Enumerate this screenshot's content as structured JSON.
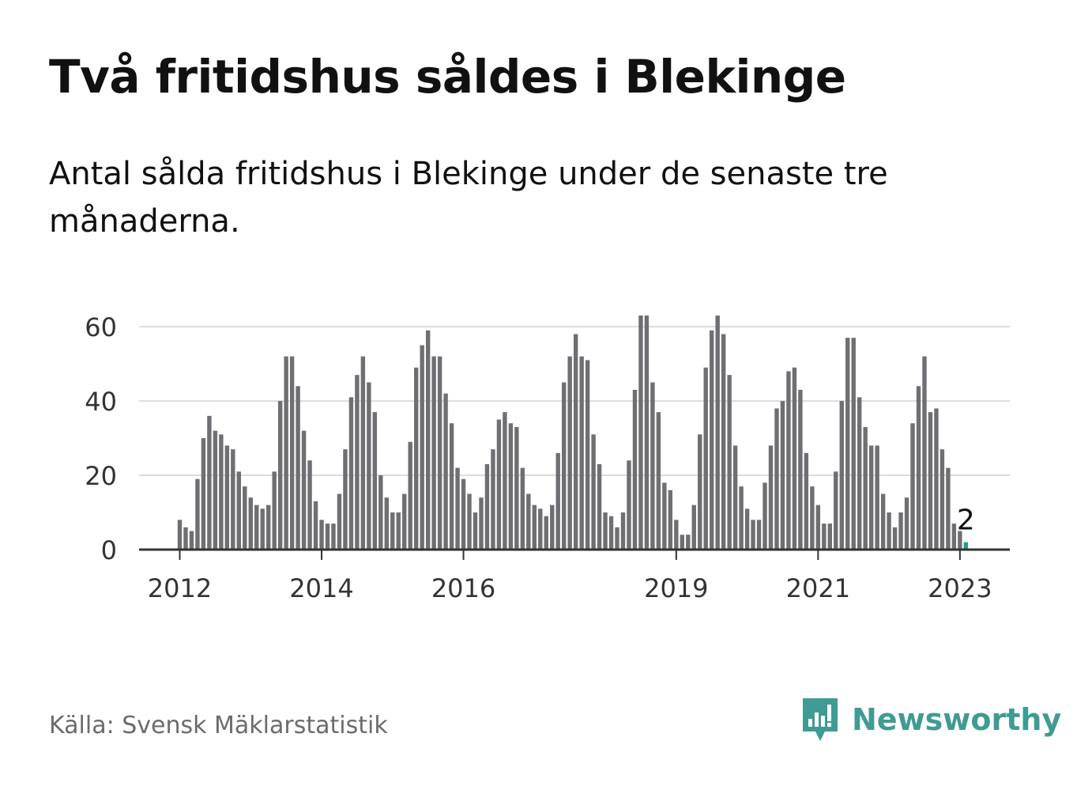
{
  "title": "Två fritidshus såldes i Blekinge",
  "subtitle": "Antal sålda fritidshus i Blekinge under de senaste tre månaderna.",
  "source": "Källa: Svensk Mäklarstatistik",
  "brand": {
    "name": "Newsworthy",
    "icon": "newsworthy-logo-icon",
    "color": "#3f9b93"
  },
  "chart_data": {
    "type": "bar",
    "x_start": "2012-01",
    "x_ticks": [
      "2012",
      "2014",
      "2016",
      "2019",
      "2021",
      "2023"
    ],
    "y_ticks": [
      "0",
      "20",
      "40",
      "60"
    ],
    "ylim": [
      0,
      63
    ],
    "grid": true,
    "bar_color": "#6f6f73",
    "highlight_color": "#1f9e8f",
    "highlight_label": "2",
    "values": [
      8,
      6,
      5,
      19,
      30,
      36,
      32,
      31,
      28,
      27,
      21,
      17,
      14,
      12,
      11,
      12,
      21,
      40,
      52,
      52,
      44,
      32,
      24,
      13,
      8,
      7,
      7,
      15,
      27,
      41,
      47,
      52,
      45,
      37,
      20,
      14,
      10,
      10,
      15,
      29,
      49,
      55,
      59,
      52,
      52,
      42,
      34,
      22,
      19,
      15,
      10,
      14,
      23,
      27,
      35,
      37,
      34,
      33,
      22,
      15,
      12,
      11,
      9,
      12,
      26,
      45,
      52,
      58,
      52,
      51,
      31,
      23,
      10,
      9,
      6,
      10,
      24,
      43,
      63,
      63,
      45,
      37,
      18,
      16,
      8,
      4,
      4,
      12,
      31,
      49,
      59,
      63,
      58,
      47,
      28,
      17,
      11,
      8,
      8,
      18,
      28,
      38,
      40,
      48,
      49,
      43,
      26,
      17,
      12,
      7,
      7,
      21,
      40,
      57,
      57,
      41,
      33,
      28,
      28,
      15,
      10,
      6,
      10,
      14,
      34,
      44,
      52,
      37,
      38,
      27,
      22,
      7,
      5,
      2
    ]
  }
}
